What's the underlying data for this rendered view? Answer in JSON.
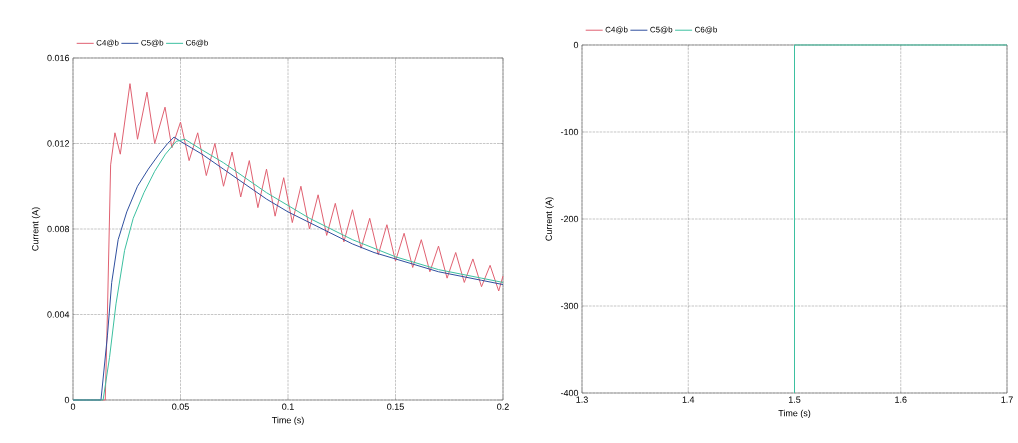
{
  "chart_data": [
    {
      "type": "line",
      "xlabel": "Time (s)",
      "ylabel": "Current (A)",
      "xlim": [
        0,
        0.2
      ],
      "ylim": [
        0,
        0.016
      ],
      "xticks": [
        0,
        0.05,
        0.1,
        0.15,
        0.2
      ],
      "yticks": [
        0,
        0.004,
        0.008,
        0.012,
        0.016
      ],
      "grid": true,
      "legend": "top left",
      "marker": "none",
      "line_style": "solid",
      "series": [
        {
          "name": "C4@b",
          "color": "#e06070",
          "x": [
            0,
            0.015,
            0.016,
            0.0175,
            0.0195,
            0.022,
            0.0265,
            0.03,
            0.0344,
            0.038,
            0.0428,
            0.046,
            0.05,
            0.054,
            0.058,
            0.062,
            0.066,
            0.07,
            0.074,
            0.078,
            0.082,
            0.086,
            0.09,
            0.094,
            0.098,
            0.102,
            0.106,
            0.11,
            0.114,
            0.118,
            0.122,
            0.126,
            0.13,
            0.134,
            0.138,
            0.142,
            0.146,
            0.15,
            0.154,
            0.158,
            0.162,
            0.166,
            0.17,
            0.174,
            0.178,
            0.182,
            0.186,
            0.19,
            0.194,
            0.198,
            0.2
          ],
          "values": [
            0,
            0,
            0.004,
            0.011,
            0.0125,
            0.0115,
            0.0148,
            0.0122,
            0.0144,
            0.012,
            0.0137,
            0.0118,
            0.013,
            0.0112,
            0.0125,
            0.0105,
            0.012,
            0.01,
            0.0116,
            0.0095,
            0.0112,
            0.009,
            0.0108,
            0.0086,
            0.0104,
            0.0083,
            0.01,
            0.008,
            0.0096,
            0.0077,
            0.0092,
            0.0074,
            0.0089,
            0.0071,
            0.0085,
            0.0068,
            0.0082,
            0.0065,
            0.0078,
            0.0062,
            0.0075,
            0.006,
            0.0072,
            0.0057,
            0.0069,
            0.0055,
            0.0066,
            0.0053,
            0.0063,
            0.0051,
            0.0058
          ]
        },
        {
          "name": "C5@b",
          "color": "#2f4f9f",
          "x": [
            0,
            0.013,
            0.016,
            0.018,
            0.021,
            0.025,
            0.03,
            0.035,
            0.04,
            0.044,
            0.047,
            0.05,
            0.055,
            0.06,
            0.07,
            0.08,
            0.09,
            0.1,
            0.11,
            0.12,
            0.13,
            0.14,
            0.15,
            0.16,
            0.17,
            0.18,
            0.19,
            0.2
          ],
          "values": [
            0,
            0,
            0.003,
            0.0055,
            0.0075,
            0.0088,
            0.01,
            0.0108,
            0.0115,
            0.012,
            0.0123,
            0.0121,
            0.0118,
            0.0115,
            0.0108,
            0.0101,
            0.0094,
            0.0088,
            0.0083,
            0.0078,
            0.0073,
            0.0069,
            0.0066,
            0.0063,
            0.006,
            0.0058,
            0.0056,
            0.0054
          ]
        },
        {
          "name": "C6@b",
          "color": "#3cc0a0",
          "x": [
            0,
            0.014,
            0.017,
            0.02,
            0.024,
            0.028,
            0.033,
            0.038,
            0.043,
            0.048,
            0.052,
            0.06,
            0.07,
            0.08,
            0.09,
            0.1,
            0.11,
            0.12,
            0.13,
            0.14,
            0.15,
            0.16,
            0.17,
            0.18,
            0.19,
            0.2
          ],
          "values": [
            0,
            0,
            0.002,
            0.0045,
            0.007,
            0.0085,
            0.0097,
            0.0107,
            0.0115,
            0.0121,
            0.0122,
            0.0117,
            0.0111,
            0.0104,
            0.0097,
            0.0091,
            0.0085,
            0.008,
            0.0075,
            0.0071,
            0.0067,
            0.0064,
            0.0061,
            0.0059,
            0.0057,
            0.0055
          ]
        }
      ]
    },
    {
      "type": "line",
      "xlabel": "Time (s)",
      "ylabel": "Current (A)",
      "xlim": [
        1.3,
        1.7
      ],
      "ylim": [
        -400,
        0
      ],
      "xticks": [
        1.3,
        1.4,
        1.5,
        1.6,
        1.7
      ],
      "yticks": [
        -400,
        -300,
        -200,
        -100,
        0
      ],
      "grid": true,
      "legend": "top left",
      "marker": "none",
      "line_style": "solid",
      "series": [
        {
          "name": "C4@b",
          "color": "#e06070"
        },
        {
          "name": "C5@b",
          "color": "#2f4f9f"
        },
        {
          "name": "C6@b",
          "color": "#3cc0a0",
          "x": [
            1.5,
            1.5,
            1.7
          ],
          "values": [
            -400,
            0,
            0
          ]
        }
      ]
    }
  ]
}
